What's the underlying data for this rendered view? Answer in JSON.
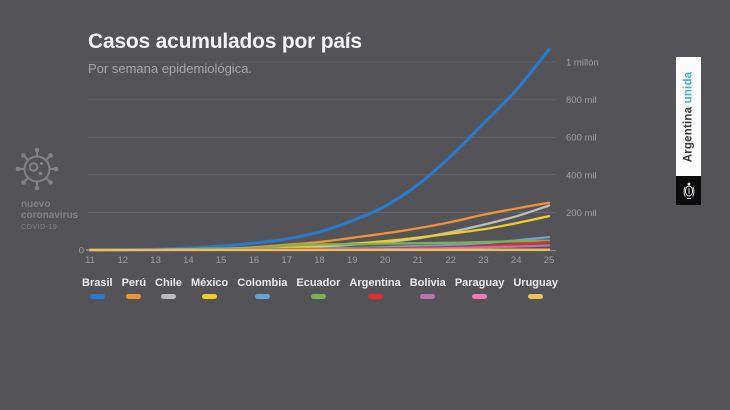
{
  "page": {
    "background": "#545458"
  },
  "header": {
    "title": "Casos acumulados por país",
    "subtitle": "Por semana epidemiológica."
  },
  "branding_left": {
    "icon": "coronavirus-icon",
    "line1": "nuevo",
    "line2": "coronavirus",
    "line3": "COVID-19",
    "color": "#828386"
  },
  "branding_right": {
    "word1": "Argentina",
    "word2": "unida",
    "word1_color": "#3b3b3d",
    "word2_color": "#45aadc",
    "strip_bg": "#fbfbfb",
    "emblem": "argentina-coat-of-arms-icon",
    "emblem_bg": "#0b0b0b"
  },
  "chart_data": {
    "type": "line",
    "title": "Casos acumulados por país",
    "subtitle": "Por semana epidemiológica.",
    "xlabel": "",
    "ylabel": "",
    "x": [
      11,
      12,
      13,
      14,
      15,
      16,
      17,
      18,
      19,
      20,
      21,
      22,
      23,
      24,
      25
    ],
    "ylim": [
      0,
      1100000
    ],
    "grid": true,
    "legend_position": "bottom",
    "y_ticks": [
      {
        "value": 0,
        "label": "0"
      },
      {
        "value": 200000,
        "label": "200 mil"
      },
      {
        "value": 400000,
        "label": "400 mil"
      },
      {
        "value": 600000,
        "label": "600 mil"
      },
      {
        "value": 800000,
        "label": "800 mil"
      },
      {
        "value": 1000000,
        "label": "1 millón"
      }
    ],
    "series": [
      {
        "name": "Brasil",
        "color": "#2979d0",
        "values": [
          200,
          1100,
          3900,
          10300,
          20700,
          36600,
          58500,
          96500,
          155900,
          233100,
          347400,
          498400,
          672800,
          850500,
          1067600
        ]
      },
      {
        "name": "Perú",
        "color": "#ed9335",
        "values": [
          50,
          400,
          700,
          1600,
          5900,
          14400,
          27500,
          42500,
          65000,
          88500,
          115800,
          148300,
          187400,
          220700,
          251300
        ]
      },
      {
        "name": "Chile",
        "color": "#bcbdbf",
        "values": [
          80,
          550,
          1600,
          4000,
          7200,
          9700,
          13300,
          18400,
          28000,
          41400,
          61900,
          94900,
          134200,
          179400,
          236700
        ]
      },
      {
        "name": "México",
        "color": "#efce2a",
        "values": [
          30,
          250,
          720,
          1700,
          4200,
          7500,
          13800,
          22000,
          33500,
          47100,
          65900,
          87500,
          110000,
          142700,
          180500
        ]
      },
      {
        "name": "Colombia",
        "color": "#6a9fd8",
        "values": [
          30,
          230,
          540,
          1200,
          2700,
          3600,
          5100,
          7700,
          10500,
          14900,
          21200,
          26700,
          36600,
          50900,
          68700
        ]
      },
      {
        "name": "Ecuador",
        "color": "#7cb152",
        "values": [
          60,
          530,
          1800,
          3400,
          7200,
          9000,
          22700,
          29500,
          30500,
          33600,
          36300,
          38500,
          42800,
          46300,
          49700
        ]
      },
      {
        "name": "Argentina",
        "color": "#df2c2c",
        "values": [
          60,
          260,
          690,
          1450,
          2140,
          2840,
          3890,
          4780,
          6030,
          7800,
          11350,
          16200,
          22000,
          31000,
          42800
        ]
      },
      {
        "name": "Bolivia",
        "color": "#be72b4",
        "values": [
          10,
          30,
          75,
          160,
          300,
          560,
          950,
          1590,
          2870,
          4260,
          6260,
          9980,
          13600,
          18500,
          24400
        ]
      },
      {
        "name": "Paraguay",
        "color": "#f079ae",
        "values": [
          10,
          25,
          60,
          110,
          160,
          210,
          240,
          400,
          560,
          790,
          880,
          990,
          1100,
          1250,
          1330
        ]
      },
      {
        "name": "Uruguay",
        "color": "#e9c258",
        "values": [
          10,
          110,
          310,
          400,
          480,
          530,
          580,
          650,
          700,
          740,
          780,
          820,
          840,
          850,
          880
        ]
      }
    ]
  }
}
